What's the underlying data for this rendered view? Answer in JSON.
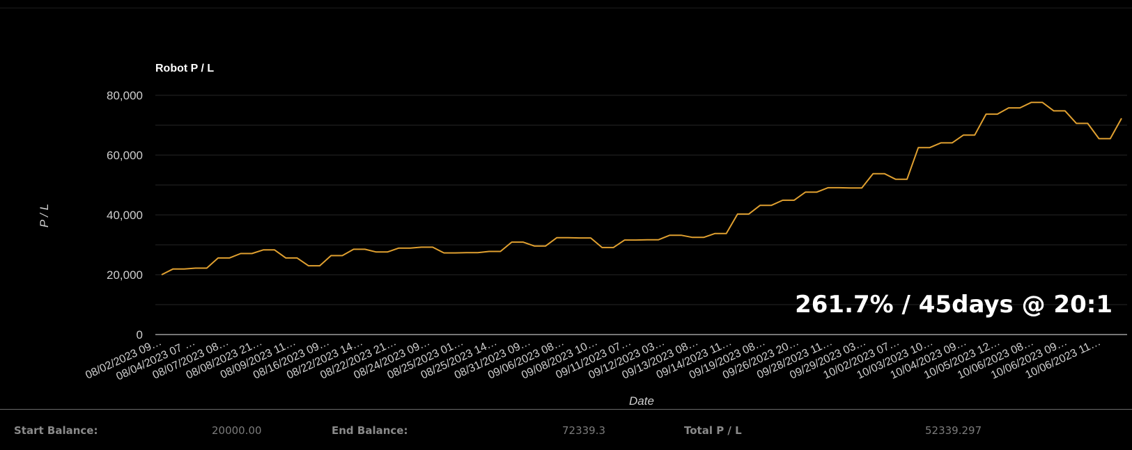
{
  "chart_data": {
    "type": "line",
    "title": "Robot P / L",
    "xlabel": "Date",
    "ylabel": "P / L",
    "ylim": [
      0,
      80000
    ],
    "yticks": [
      "0",
      "20,000",
      "40,000",
      "60,000",
      "80,000"
    ],
    "y_tick_values": [
      0,
      20000,
      40000,
      60000,
      80000
    ],
    "grid": true,
    "annotation": "261.7% / 45days @ 20:1",
    "line_color": "#e0a030",
    "x_tick_labels": [
      "08/02/2023 09…",
      "08/04/2023 07 …",
      "08/07/2023 08…",
      "08/08/2023 21…",
      "08/09/2023 11…",
      "08/16/2023 09…",
      "08/22/2023 14…",
      "08/22/2023 21…",
      "08/24/2023 09…",
      "08/25/2023 01…",
      "08/25/2023 14…",
      "08/31/2023 09…",
      "09/06/2023 08…",
      "09/08/2023 10…",
      "09/11/2023 07…",
      "09/12/2023 03…",
      "09/13/2023 08…",
      "09/14/2023 11…",
      "09/19/2023 08…",
      "09/26/2023 20…",
      "09/28/2023 11…",
      "09/29/2023 03…",
      "10/02/2023 07…",
      "10/03/2023 10…",
      "10/04/2023 09…",
      "10/05/2023 12…",
      "10/06/2023 08…",
      "10/06/2023 09…",
      "10/06/2023 11…"
    ],
    "series": [
      {
        "values": [
          20000,
          21900,
          21900,
          22200,
          22200,
          25600,
          25600,
          27100,
          27100,
          28300,
          28300,
          25600,
          25600,
          23000,
          23000,
          26400,
          26400,
          28500,
          28500,
          27600,
          27600,
          28900,
          28900,
          29200,
          29200,
          27300,
          27300,
          27400,
          27400,
          27800,
          27800,
          30900,
          30900,
          29600,
          29600,
          32400,
          32400,
          32300,
          32300,
          29100,
          29100,
          31600,
          31600,
          31700,
          31700,
          33200,
          33200,
          32500,
          32500,
          33800,
          33800,
          40300,
          40300,
          43200,
          43200,
          44900,
          44900,
          47600,
          47600,
          49100,
          49100,
          49000,
          49000,
          53800,
          53800,
          51900,
          51900,
          62500,
          62500,
          64100,
          64100,
          66700,
          66700,
          73700,
          73700,
          75800,
          75800,
          77600,
          77600,
          74800,
          74800,
          70600,
          70600,
          65500,
          65500,
          72300
        ]
      }
    ]
  },
  "footer": {
    "start_label": "Start Balance:",
    "start_value": "20000.00",
    "end_label": "End Balance:",
    "end_value": "72339.3",
    "total_label": "Total P / L",
    "total_value": "52339.297"
  }
}
